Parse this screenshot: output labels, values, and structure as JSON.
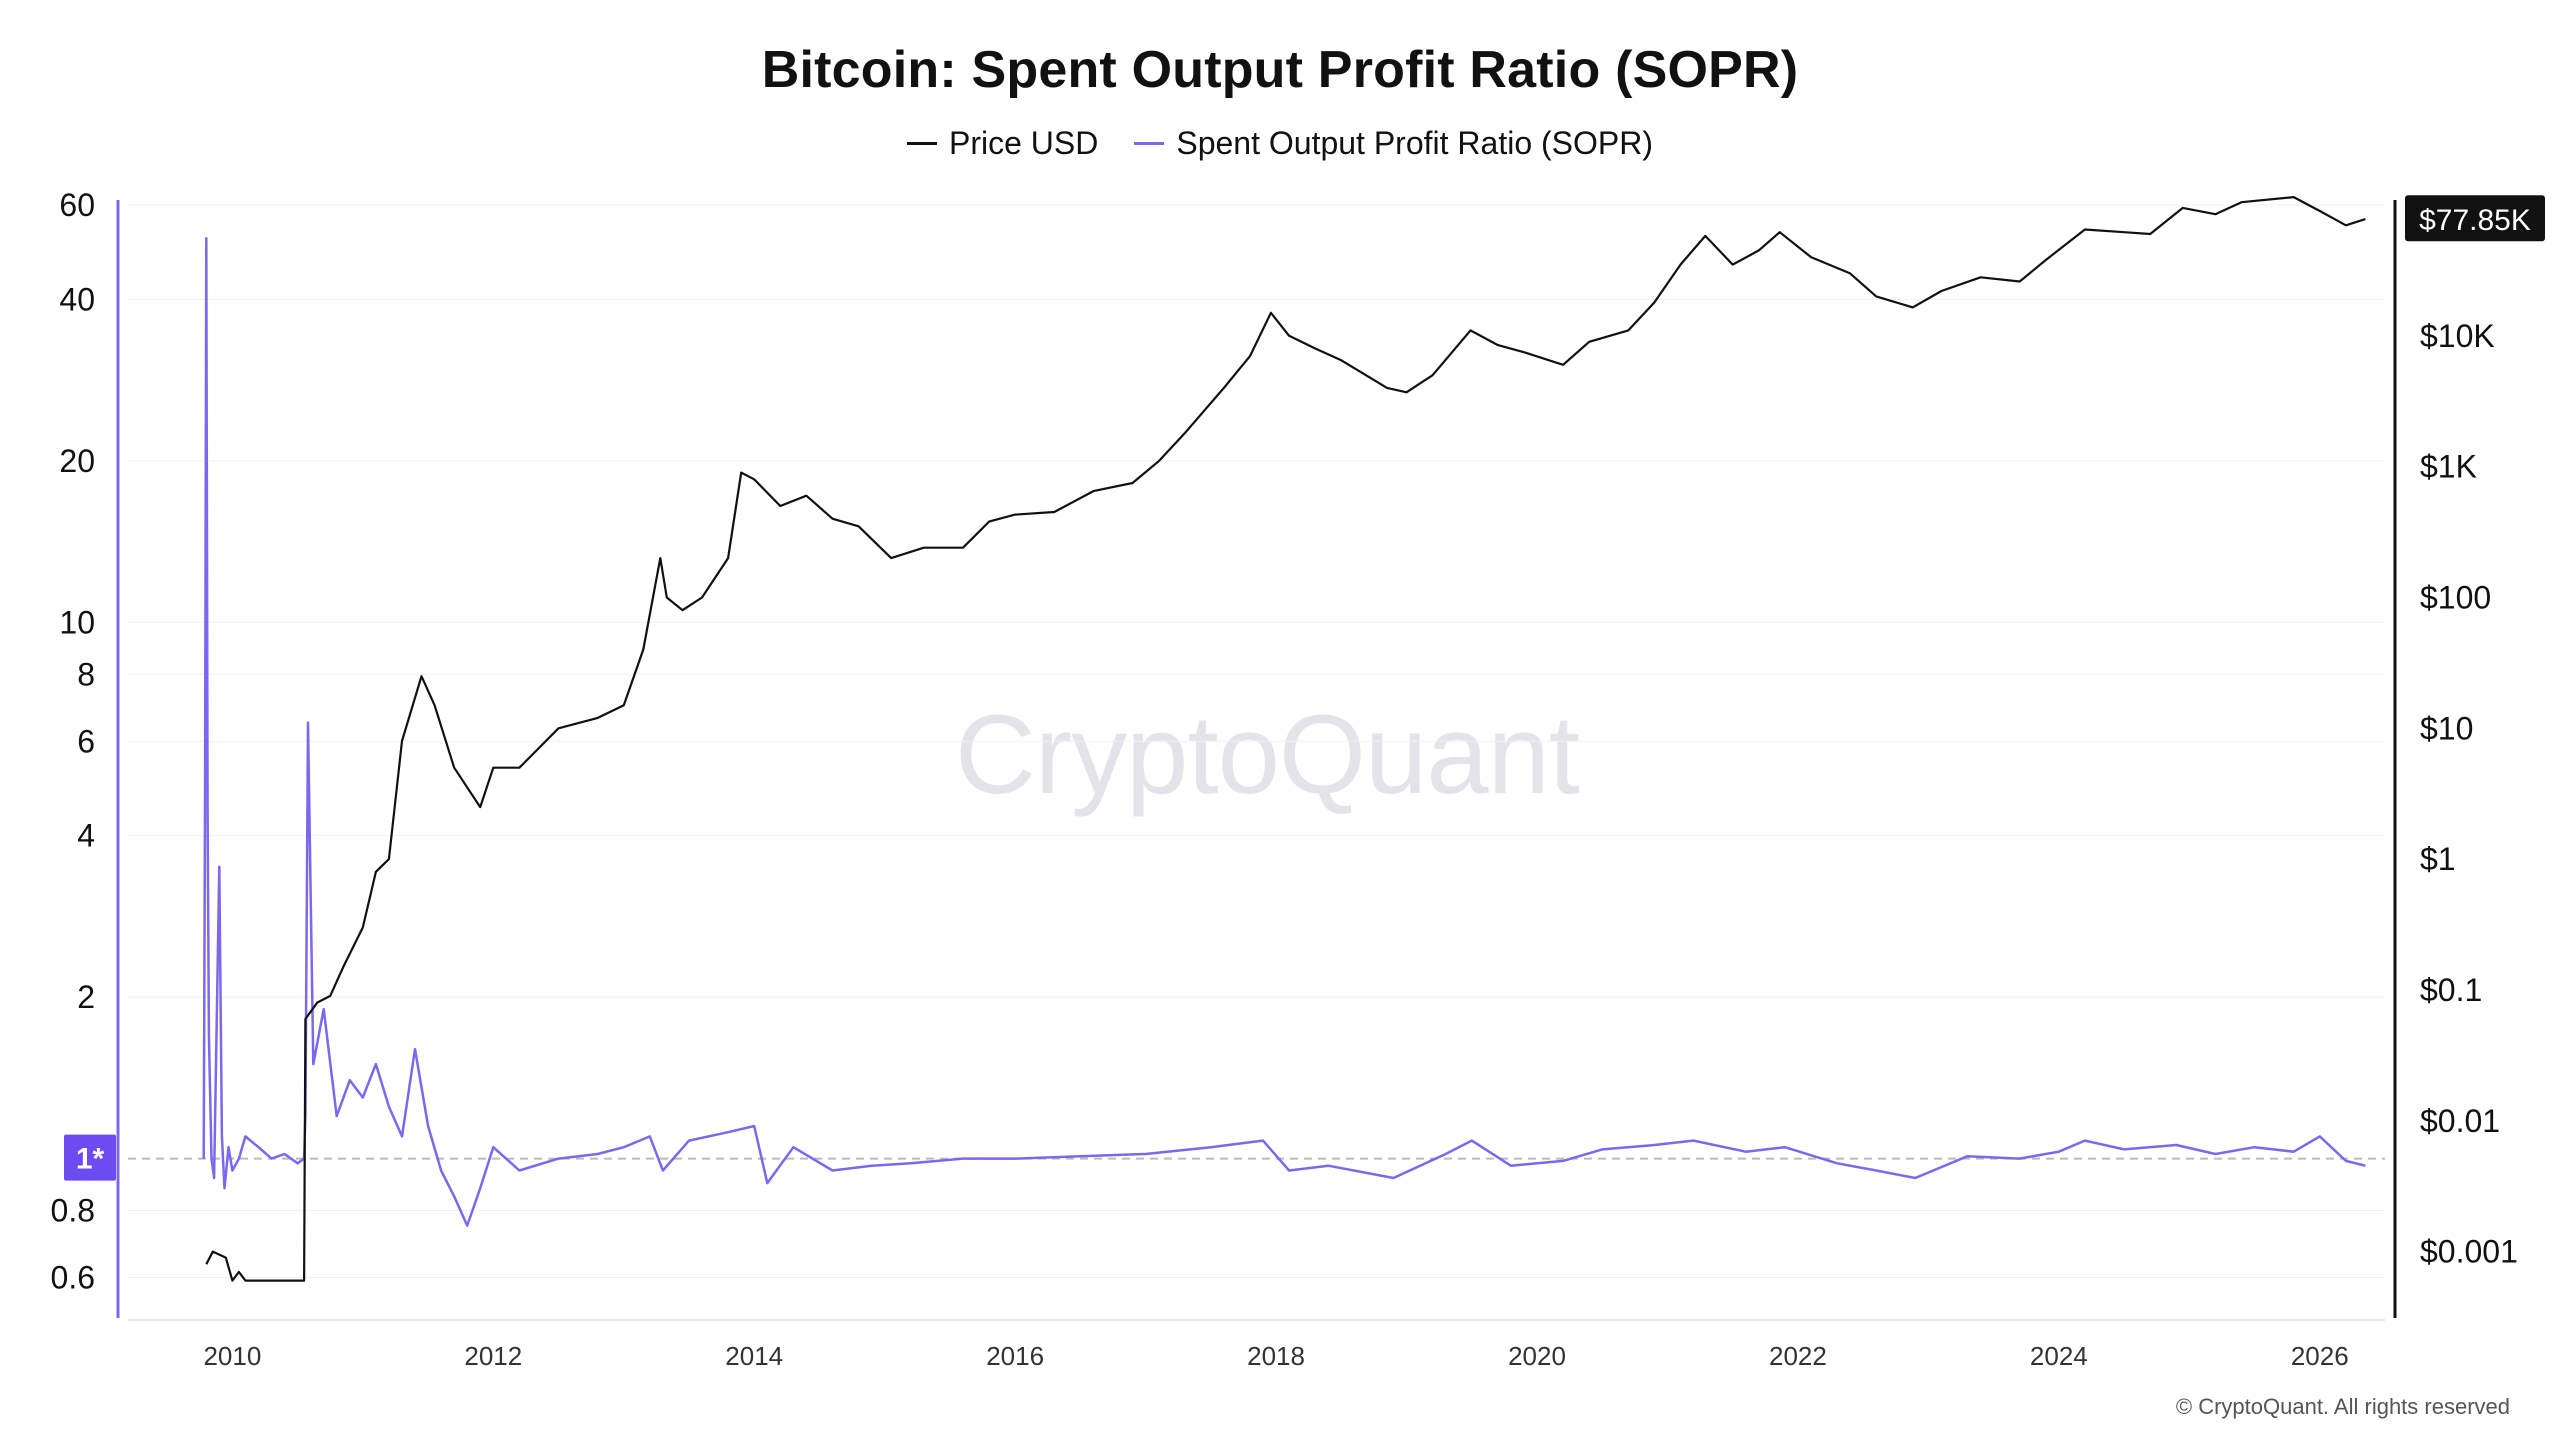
{
  "chart_data": {
    "type": "line",
    "title": "Bitcoin: Spent Output Profit Ratio (SOPR)",
    "legend": {
      "placement": "top-center",
      "entries": [
        "Price USD",
        "Spent Output Profit Ratio (SOPR)"
      ]
    },
    "colors": {
      "price": "#111111",
      "sopr": "#7b68ee",
      "reference": "#bbbbbb",
      "marker": "#6c4cf1"
    },
    "x_axis": {
      "type": "time",
      "range": [
        2009.2,
        2026.5
      ],
      "ticks": [
        "2010",
        "2012",
        "2014",
        "2016",
        "2018",
        "2020",
        "2022",
        "2024",
        "2026"
      ],
      "tick_values": [
        2010,
        2012,
        2014,
        2016,
        2018,
        2020,
        2022,
        2024,
        2026
      ]
    },
    "left_axis": {
      "scale": "log",
      "range": [
        0.5,
        60
      ],
      "ticks": [
        "60",
        "40",
        "20",
        "10",
        "8",
        "6",
        "4",
        "2",
        "0.8",
        "0.6"
      ],
      "tick_values": [
        60,
        40,
        20,
        10,
        8,
        6,
        4,
        2,
        0.8,
        0.6
      ],
      "reference_label": "1*",
      "reference_value": 1
    },
    "right_axis": {
      "scale": "log",
      "range": [
        0.0003,
        100000
      ],
      "ticks": [
        "$10K",
        "$1K",
        "$100",
        "$10",
        "$1",
        "$0.1",
        "$0.01",
        "$0.001"
      ],
      "tick_values": [
        10000,
        1000,
        100,
        10,
        1,
        0.1,
        0.01,
        0.001
      ],
      "current_label": "$77.85K",
      "current_value": 77850
    },
    "grid": true,
    "series": [
      {
        "name": "Price USD",
        "axis": "right",
        "x": [
          2009.8,
          2009.85,
          2009.95,
          2010.0,
          2010.05,
          2010.1,
          2010.3,
          2010.55,
          2010.56,
          2010.65,
          2010.75,
          2010.85,
          2011.0,
          2011.1,
          2011.2,
          2011.3,
          2011.45,
          2011.55,
          2011.7,
          2011.9,
          2012.0,
          2012.2,
          2012.5,
          2012.8,
          2013.0,
          2013.15,
          2013.28,
          2013.33,
          2013.45,
          2013.6,
          2013.8,
          2013.9,
          2014.0,
          2014.2,
          2014.4,
          2014.6,
          2014.8,
          2015.05,
          2015.3,
          2015.6,
          2015.8,
          2016.0,
          2016.3,
          2016.6,
          2016.9,
          2017.1,
          2017.3,
          2017.6,
          2017.8,
          2017.96,
          2018.1,
          2018.3,
          2018.5,
          2018.85,
          2019.0,
          2019.2,
          2019.49,
          2019.7,
          2019.9,
          2020.2,
          2020.4,
          2020.7,
          2020.9,
          2021.1,
          2021.29,
          2021.5,
          2021.7,
          2021.86,
          2022.1,
          2022.4,
          2022.6,
          2022.88,
          2023.1,
          2023.4,
          2023.7,
          2023.9,
          2024.2,
          2024.5,
          2024.7,
          2024.95,
          2025.2,
          2025.4,
          2025.8,
          2026.0,
          2026.2,
          2026.35
        ],
        "y": [
          0.0008,
          0.001,
          0.0009,
          0.0006,
          0.0007,
          0.0006,
          0.0006,
          0.0006,
          0.06,
          0.08,
          0.09,
          0.15,
          0.3,
          0.8,
          1.0,
          8,
          25,
          15,
          5,
          2.5,
          5,
          5,
          10,
          12,
          15,
          40,
          200,
          100,
          80,
          100,
          200,
          900,
          800,
          500,
          600,
          400,
          350,
          200,
          240,
          240,
          380,
          430,
          450,
          650,
          750,
          1100,
          1800,
          4000,
          7000,
          15000,
          10000,
          8000,
          6500,
          4000,
          3700,
          5000,
          11000,
          8500,
          7500,
          6000,
          9000,
          11000,
          18000,
          35000,
          58000,
          35000,
          45000,
          62000,
          40000,
          30000,
          20000,
          16500,
          22000,
          28000,
          26000,
          38000,
          65000,
          62000,
          60000,
          95000,
          85000,
          105000,
          115000,
          90000,
          70000,
          78000
        ]
      },
      {
        "name": "Spent Output Profit Ratio (SOPR)",
        "axis": "left",
        "x": [
          2009.78,
          2009.79,
          2009.8,
          2009.81,
          2009.82,
          2009.84,
          2009.86,
          2009.9,
          2009.92,
          2009.94,
          2009.97,
          2010.0,
          2010.05,
          2010.1,
          2010.2,
          2010.3,
          2010.4,
          2010.5,
          2010.55,
          2010.56,
          2010.58,
          2010.62,
          2010.7,
          2010.8,
          2010.9,
          2011.0,
          2011.1,
          2011.2,
          2011.3,
          2011.4,
          2011.5,
          2011.6,
          2011.7,
          2011.8,
          2011.9,
          2012.0,
          2012.2,
          2012.5,
          2012.8,
          2013.0,
          2013.2,
          2013.3,
          2013.5,
          2013.8,
          2014.0,
          2014.1,
          2014.3,
          2014.6,
          2014.9,
          2015.2,
          2015.6,
          2016.0,
          2016.5,
          2017.0,
          2017.5,
          2017.9,
          2018.1,
          2018.4,
          2018.9,
          2019.3,
          2019.5,
          2019.8,
          2020.2,
          2020.5,
          2020.9,
          2021.2,
          2021.6,
          2021.9,
          2022.3,
          2022.6,
          2022.9,
          2023.3,
          2023.7,
          2024.0,
          2024.2,
          2024.5,
          2024.9,
          2025.2,
          2025.5,
          2025.8,
          2026.0,
          2026.2,
          2026.35
        ],
        "y": [
          1.0,
          4.5,
          52,
          4.4,
          1.7,
          1.0,
          0.92,
          3.5,
          1.1,
          0.88,
          1.05,
          0.95,
          1.0,
          1.1,
          1.05,
          1.0,
          1.02,
          0.98,
          1.0,
          1.2,
          6.5,
          1.5,
          1.9,
          1.2,
          1.4,
          1.3,
          1.5,
          1.25,
          1.1,
          1.6,
          1.15,
          0.95,
          0.85,
          0.75,
          0.88,
          1.05,
          0.95,
          1.0,
          1.02,
          1.05,
          1.1,
          0.95,
          1.08,
          1.12,
          1.15,
          0.9,
          1.05,
          0.95,
          0.97,
          0.98,
          1.0,
          1.0,
          1.01,
          1.02,
          1.05,
          1.08,
          0.95,
          0.97,
          0.92,
          1.02,
          1.08,
          0.97,
          0.99,
          1.04,
          1.06,
          1.08,
          1.03,
          1.05,
          0.98,
          0.95,
          0.92,
          1.01,
          1.0,
          1.03,
          1.08,
          1.04,
          1.06,
          1.02,
          1.05,
          1.03,
          1.1,
          0.99,
          0.97
        ]
      }
    ]
  },
  "copyright": "© CryptoQuant. All rights reserved",
  "watermark": "CryptoQuant"
}
